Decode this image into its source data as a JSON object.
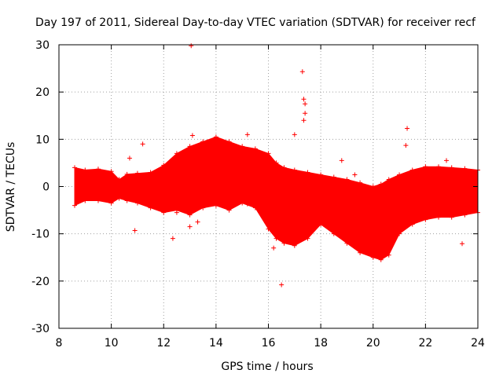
{
  "chart_data": {
    "type": "scatter",
    "title": "Day 197 of 2011, Sidereal Day-to-day VTEC variation (SDTVAR) for receiver recf",
    "xlabel": "GPS time / hours",
    "ylabel": "SDTVAR / TECUs",
    "xlim": [
      8,
      24
    ],
    "ylim": [
      -30,
      30
    ],
    "xticks": [
      8,
      10,
      12,
      14,
      16,
      18,
      20,
      22,
      24
    ],
    "yticks": [
      -30,
      -20,
      -10,
      0,
      10,
      20,
      30
    ],
    "grid": true,
    "color": "#ff0000",
    "marker": "+",
    "series": [
      {
        "name": "SDTVAR",
        "envelope": {
          "x": [
            8.6,
            9.0,
            9.5,
            10.0,
            10.3,
            10.6,
            11.0,
            11.5,
            12.0,
            12.5,
            13.0,
            13.5,
            14.0,
            14.5,
            15.0,
            15.5,
            16.0,
            16.3,
            16.6,
            17.0,
            17.5,
            18.0,
            18.5,
            19.0,
            19.5,
            20.0,
            20.3,
            20.6,
            21.0,
            21.5,
            22.0,
            22.5,
            23.0,
            23.5,
            24.0
          ],
          "upper": [
            4.0,
            3.5,
            3.7,
            3.2,
            1.5,
            2.6,
            2.8,
            3.0,
            4.5,
            7.0,
            8.5,
            9.5,
            10.5,
            9.5,
            8.5,
            8.0,
            7.0,
            5.0,
            4.0,
            3.5,
            3.0,
            2.5,
            2.0,
            1.5,
            0.8,
            0.0,
            0.5,
            1.5,
            2.5,
            3.5,
            4.2,
            4.2,
            4.0,
            3.8,
            3.5
          ],
          "lower": [
            -4.0,
            -3.0,
            -3.0,
            -3.5,
            -2.5,
            -3.0,
            -3.5,
            -4.5,
            -5.5,
            -5.0,
            -6.0,
            -4.5,
            -4.0,
            -5.0,
            -3.5,
            -4.5,
            -9.0,
            -11.0,
            -12.0,
            -12.5,
            -11.0,
            -8.0,
            -10.0,
            -12.0,
            -14.0,
            -15.0,
            -15.5,
            -14.5,
            -10.0,
            -8.0,
            -7.0,
            -6.5,
            -6.5,
            -6.0,
            -5.5
          ]
        },
        "outliers": [
          {
            "x": 13.05,
            "y": 29.8
          },
          {
            "x": 17.3,
            "y": 24.3
          },
          {
            "x": 17.35,
            "y": 18.5
          },
          {
            "x": 17.4,
            "y": 17.5
          },
          {
            "x": 17.4,
            "y": 15.5
          },
          {
            "x": 17.35,
            "y": 14.0
          },
          {
            "x": 21.3,
            "y": 12.3
          },
          {
            "x": 21.25,
            "y": 8.7
          },
          {
            "x": 11.2,
            "y": 9.0
          },
          {
            "x": 15.2,
            "y": 11.0
          },
          {
            "x": 13.1,
            "y": 10.8
          },
          {
            "x": 17.0,
            "y": 11.0
          },
          {
            "x": 18.8,
            "y": 5.5
          },
          {
            "x": 10.9,
            "y": -9.3
          },
          {
            "x": 12.35,
            "y": -11.0
          },
          {
            "x": 16.5,
            "y": -20.8
          },
          {
            "x": 23.4,
            "y": -12.1
          },
          {
            "x": 12.5,
            "y": -5.5
          },
          {
            "x": 13.0,
            "y": -8.5
          },
          {
            "x": 13.3,
            "y": -7.5
          },
          {
            "x": 15.2,
            "y": -3.7
          },
          {
            "x": 10.7,
            "y": 6.0
          },
          {
            "x": 22.8,
            "y": 5.5
          },
          {
            "x": 16.2,
            "y": -13.0
          },
          {
            "x": 19.3,
            "y": 2.5
          }
        ]
      }
    ]
  }
}
